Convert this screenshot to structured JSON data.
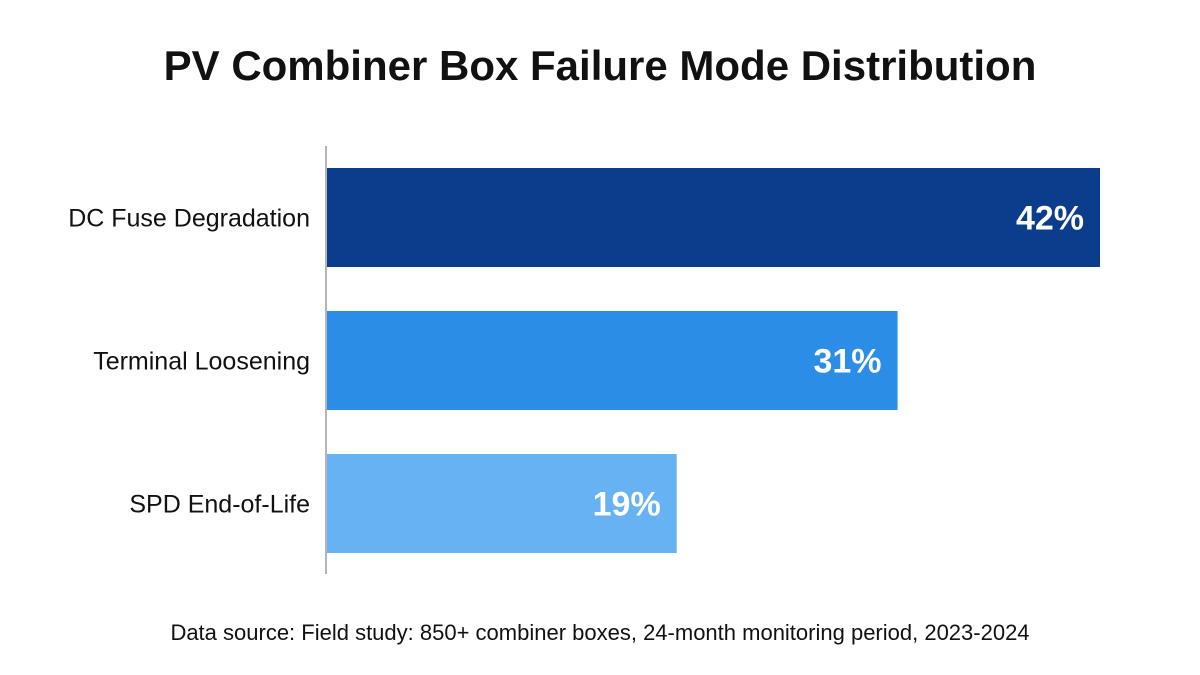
{
  "chart_data": {
    "type": "bar",
    "orientation": "horizontal",
    "title": "PV Combiner Box Failure Mode Distribution",
    "categories": [
      "DC Fuse Degradation",
      "Terminal Loosening",
      "SPD End-of-Life"
    ],
    "values": [
      42,
      31,
      19
    ],
    "value_labels": [
      "42%",
      "31%",
      "19%"
    ],
    "colors": [
      "#0b3d8c",
      "#2b8de6",
      "#67b2f2"
    ],
    "xlim": [
      0,
      42
    ],
    "grid": false,
    "legend": "none"
  },
  "footer": {
    "source": "Data source: Field study: 850+ combiner boxes, 24-month monitoring period, 2023-2024"
  }
}
